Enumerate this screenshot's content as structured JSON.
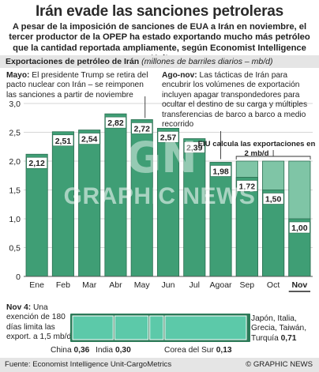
{
  "title": "Irán evade las sanciones petroleras",
  "subtitle": "A pesar de la imposición de sanciones de EUA a Irán en noviembre, el tercer productor de la OPEP ha estado exportando mucho más petróleo que la cantidad reportada ampliamente, según Economist Intelligence Unit",
  "chart_heading": {
    "bold": "Exportaciones de petróleo de Irán",
    "italic": "(millones de barriles diarios – mb/d)"
  },
  "note_may": {
    "lead": "Mayo:",
    "text": " El presidente Trump se retira del pacto nuclear con Irán – se reimponen las sanciones a partir de noviembre"
  },
  "note_ago": {
    "lead": "Ago-nov:",
    "text": " Las tácticas de Irán para encubrir los volúmenes de exportación incluyen apagar transpondedores para ocultar el destino de su carga y múltiples transferencias de barco a barco a medio recorrido"
  },
  "eiu_callout": "EIU calcula las exportaciones en 2 mb/d",
  "watermark": "GRAPHIC NEWS",
  "watermark_logo": "GN",
  "colors": {
    "bar_fill": "#3f9e75",
    "bar_stroke": "#2b6e51",
    "bar_light": "#7fc5a6",
    "band": "#e5e5e5",
    "strip_teal": "#5cc9a9",
    "dark_green": "#2c7a58"
  },
  "chart_data": {
    "type": "bar",
    "categories": [
      "Ene",
      "Feb",
      "Mar",
      "Abr",
      "May",
      "Jun",
      "Jul",
      "Agoar",
      "Sep",
      "Oct",
      "Nov"
    ],
    "values": [
      2.12,
      2.51,
      2.54,
      2.82,
      2.72,
      2.57,
      2.39,
      1.98,
      1.72,
      1.5,
      1.0
    ],
    "value_labels": [
      "2,12",
      "2,51",
      "2,54",
      "2,82",
      "2,72",
      "2,57",
      "2,39",
      "1,98",
      "1,72",
      "1,50",
      "1,00"
    ],
    "eiu_estimate": 2.0,
    "eiu_months": [
      "Sep",
      "Oct",
      "Nov"
    ],
    "y_ticks": [
      "0",
      "0,5",
      "1,0",
      "1,5",
      "2,0",
      "2,5",
      "3,0"
    ],
    "y_tick_values": [
      0,
      0.5,
      1.0,
      1.5,
      2.0,
      2.5,
      3.0
    ],
    "ylim": [
      0,
      3.0
    ],
    "grid": true,
    "highlight_category": "Nov"
  },
  "exemption": {
    "lead": "Nov 4:",
    "text": " Una exención de 180 días limita las export. a 1,5 mb/d"
  },
  "exemption_strip": [
    {
      "label": "China",
      "value": 0.36,
      "value_label": "0,36"
    },
    {
      "label": "India",
      "value": 0.3,
      "value_label": "0,30"
    },
    {
      "label": "Corea del Sur",
      "value": 0.13,
      "value_label": "0,13"
    },
    {
      "label": "Japón, Italia, Grecia, Taiwán, Turquía",
      "value": 0.71,
      "value_label": "0,71"
    }
  ],
  "source": "Fuente: Economist Intelligence Unit-CargoMetrics",
  "copyright": "© GRAPHIC NEWS"
}
